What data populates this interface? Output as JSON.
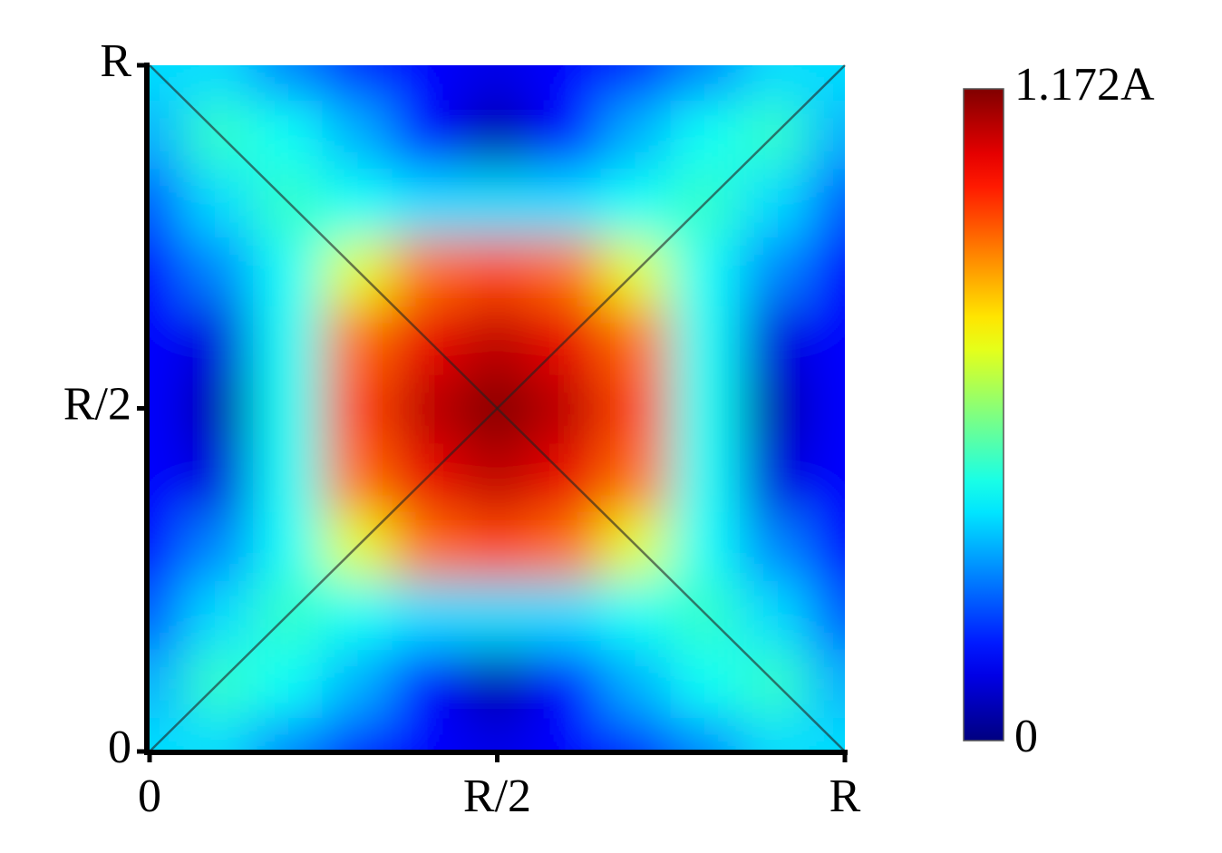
{
  "chart_data": {
    "type": "heatmap",
    "x": [
      0,
      0.1,
      0.2,
      0.3,
      0.4,
      0.5,
      0.6,
      0.7,
      0.8,
      0.9,
      1
    ],
    "y": [
      0,
      0.1,
      0.2,
      0.3,
      0.4,
      0.5,
      0.6,
      0.7,
      0.8,
      0.9,
      1
    ],
    "z": [
      [
        0.4,
        0.4,
        0.3,
        0.2,
        0.15,
        0.12,
        0.15,
        0.2,
        0.3,
        0.4,
        0.4
      ],
      [
        0.35,
        0.5,
        0.45,
        0.35,
        0.15,
        0.05,
        0.15,
        0.35,
        0.45,
        0.5,
        0.35
      ],
      [
        0.25,
        0.4,
        0.5,
        0.45,
        0.4,
        0.4,
        0.4,
        0.45,
        0.5,
        0.4,
        0.25
      ],
      [
        0.15,
        0.3,
        0.45,
        0.7,
        0.9,
        0.95,
        0.9,
        0.7,
        0.45,
        0.3,
        0.15
      ],
      [
        0.15,
        0.1,
        0.45,
        0.9,
        1.05,
        1.1,
        1.05,
        0.9,
        0.45,
        0.1,
        0.15
      ],
      [
        0.15,
        0.05,
        0.45,
        0.95,
        1.1,
        1.172,
        1.1,
        0.95,
        0.45,
        0.05,
        0.15
      ],
      [
        0.15,
        0.1,
        0.45,
        0.9,
        1.05,
        1.1,
        1.05,
        0.9,
        0.45,
        0.1,
        0.15
      ],
      [
        0.15,
        0.3,
        0.45,
        0.7,
        0.9,
        0.95,
        0.9,
        0.7,
        0.45,
        0.3,
        0.15
      ],
      [
        0.25,
        0.4,
        0.5,
        0.45,
        0.4,
        0.4,
        0.4,
        0.45,
        0.5,
        0.4,
        0.25
      ],
      [
        0.35,
        0.5,
        0.45,
        0.35,
        0.15,
        0.05,
        0.15,
        0.35,
        0.45,
        0.5,
        0.35
      ],
      [
        0.4,
        0.4,
        0.3,
        0.2,
        0.15,
        0.12,
        0.15,
        0.2,
        0.3,
        0.4,
        0.4
      ]
    ],
    "xlim": [
      0,
      1
    ],
    "ylim": [
      0,
      1
    ],
    "xticks": [
      0,
      {
        "value": 0.5,
        "label": "R/2"
      },
      {
        "value": 1,
        "label": "R"
      }
    ],
    "yticks": [
      0,
      {
        "value": 0.5,
        "label": "R/2"
      },
      {
        "value": 1,
        "label": "R"
      }
    ],
    "zlim": [
      0,
      1.172
    ],
    "zticks": [
      0,
      {
        "value": 1.172,
        "label": "1.172A"
      }
    ],
    "colormap": "jet"
  }
}
